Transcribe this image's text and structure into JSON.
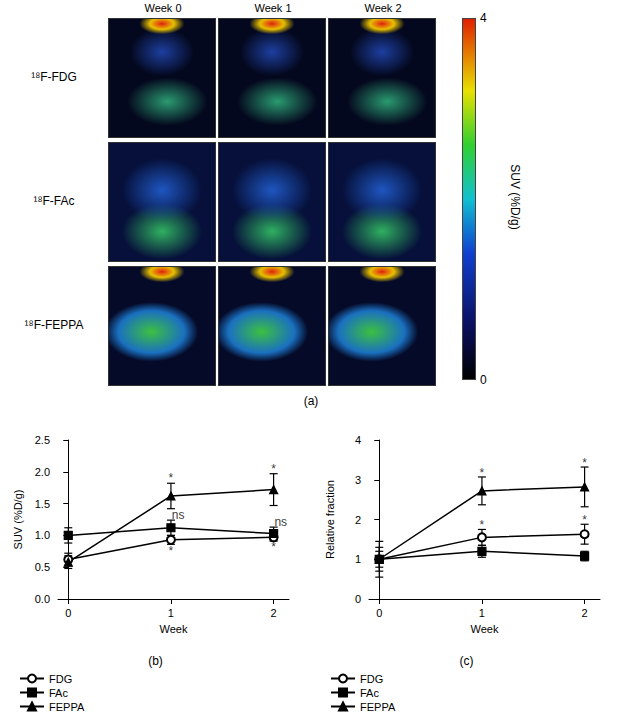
{
  "panel_a": {
    "label": "(a)",
    "columns": [
      "Week 0",
      "Week 1",
      "Week 2"
    ],
    "rows": [
      "¹⁸F-FDG",
      "¹⁸F-FAc",
      "¹⁸F-FEPPA"
    ],
    "colorbar": {
      "title": "SUV (%D/g)",
      "range": [
        0,
        4
      ],
      "ticks": [
        0,
        4
      ]
    }
  },
  "chart_data": [
    {
      "type": "line",
      "title": "(b)",
      "x_label": "Week",
      "y_label": "SUV (%D/g)",
      "x": [
        0,
        1,
        2
      ],
      "xlim": [
        -0.1,
        2.15
      ],
      "xticks": [
        0,
        1,
        2
      ],
      "ylim": [
        0,
        2.5
      ],
      "yticks": [
        {
          "value": 0,
          "label": "0.0"
        },
        {
          "value": 0.5,
          "label": "0.5"
        },
        {
          "value": 1,
          "label": "1.0"
        },
        {
          "value": 1.5,
          "label": "1.5"
        },
        {
          "value": 2,
          "label": "2.0"
        },
        {
          "value": 2.5,
          "label": "2.5"
        }
      ],
      "grid": false,
      "legend": "bottom",
      "series": [
        {
          "name": "FDG",
          "color": "#000000",
          "marker": "open circle",
          "values": [
            0.62,
            0.93,
            0.97
          ],
          "errors": [
            0.1,
            0.07,
            0.06
          ]
        },
        {
          "name": "FAc",
          "color": "#000000",
          "marker": "square",
          "values": [
            1.0,
            1.12,
            1.03
          ],
          "errors": [
            0.12,
            0.12,
            0.1
          ]
        },
        {
          "name": "FEPPA",
          "color": "#000000",
          "marker": "triangle",
          "values": [
            0.58,
            1.62,
            1.72
          ],
          "errors": [
            0.1,
            0.2,
            0.25
          ]
        }
      ],
      "annotations": [
        {
          "x": 1,
          "y": 1.9,
          "text": "*"
        },
        {
          "x": 2,
          "y": 2.04,
          "text": "*"
        },
        {
          "x": 1.07,
          "y": 1.32,
          "text": "ns"
        },
        {
          "x": 2.07,
          "y": 1.21,
          "text": "ns"
        },
        {
          "x": 1,
          "y": 0.76,
          "text": "*"
        },
        {
          "x": 2,
          "y": 0.82,
          "text": "*"
        }
      ]
    },
    {
      "type": "line",
      "title": "(c)",
      "x_label": "Week",
      "y_label": "Relative fraction",
      "x": [
        0,
        1,
        2
      ],
      "xlim": [
        -0.1,
        2.15
      ],
      "xticks": [
        0,
        1,
        2
      ],
      "ylim": [
        0,
        4
      ],
      "yticks": [
        0,
        1,
        2,
        3,
        4
      ],
      "grid": false,
      "legend": "bottom",
      "series": [
        {
          "name": "FDG",
          "color": "#000000",
          "marker": "open circle",
          "values": [
            1.0,
            1.55,
            1.63
          ],
          "errors": [
            0.3,
            0.2,
            0.25
          ]
        },
        {
          "name": "FAc",
          "color": "#000000",
          "marker": "square",
          "values": [
            1.0,
            1.2,
            1.08
          ],
          "errors": [
            0.2,
            0.15,
            0.12
          ]
        },
        {
          "name": "FEPPA",
          "color": "#000000",
          "marker": "triangle",
          "values": [
            1.0,
            2.72,
            2.82
          ],
          "errors": [
            0.45,
            0.35,
            0.5
          ]
        }
      ],
      "annotations": [
        {
          "x": 1,
          "y": 3.17,
          "text": "*"
        },
        {
          "x": 2,
          "y": 3.42,
          "text": "*"
        },
        {
          "x": 1,
          "y": 1.85,
          "text": "*"
        },
        {
          "x": 2,
          "y": 1.98,
          "text": "*"
        }
      ]
    }
  ]
}
